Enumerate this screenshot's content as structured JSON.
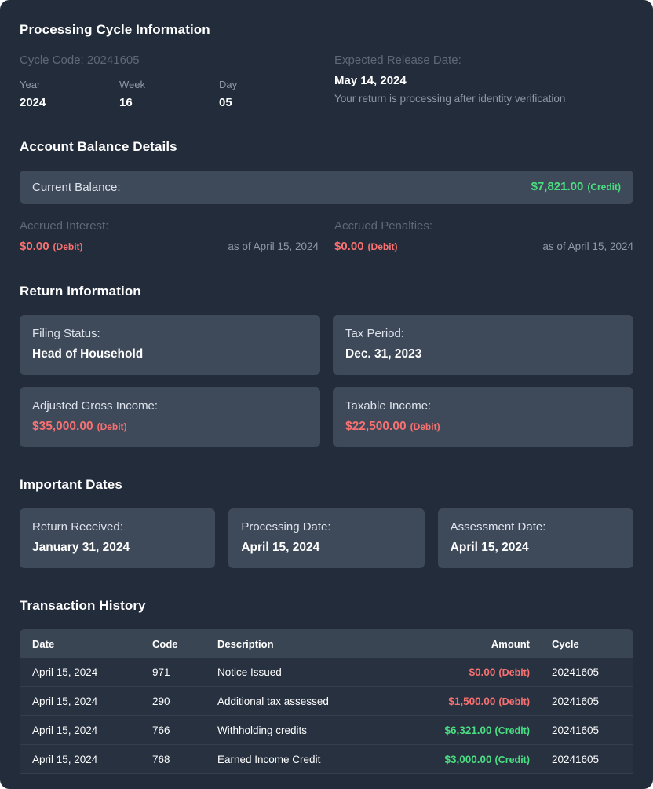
{
  "colors": {
    "credit": "#4ade80",
    "debit": "#f87171"
  },
  "processing_cycle": {
    "title": "Processing Cycle Information",
    "cycle_code": "Cycle Code: 20241605",
    "fields": [
      {
        "label": "Year",
        "value": "2024"
      },
      {
        "label": "Week",
        "value": "16"
      },
      {
        "label": "Day",
        "value": "05"
      }
    ],
    "release": {
      "label": "Expected Release Date:",
      "date": "May 14, 2024",
      "note": "Your return is processing after identity verification"
    }
  },
  "account_balance": {
    "title": "Account Balance Details",
    "current_balance": {
      "label": "Current Balance:",
      "amount": "$7,821.00",
      "suffix": "(Credit)"
    },
    "accrued": [
      {
        "label": "Accrued Interest:",
        "amount": "$0.00",
        "suffix": "(Debit)",
        "as_of": "as of April 15, 2024"
      },
      {
        "label": "Accrued Penalties:",
        "amount": "$0.00",
        "suffix": "(Debit)",
        "as_of": "as of April 15, 2024"
      }
    ]
  },
  "return_information": {
    "title": "Return Information",
    "cards": [
      {
        "label": "Filing Status:",
        "value": "Head of Household"
      },
      {
        "label": "Tax Period:",
        "value": "Dec. 31, 2023"
      },
      {
        "label": "Adjusted Gross Income:",
        "value": "$35,000.00",
        "suffix": "(Debit)"
      },
      {
        "label": "Taxable Income:",
        "value": "$22,500.00",
        "suffix": "(Debit)"
      }
    ]
  },
  "important_dates": {
    "title": "Important Dates",
    "cards": [
      {
        "label": "Return Received:",
        "value": "January 31, 2024"
      },
      {
        "label": "Processing Date:",
        "value": "April 15, 2024"
      },
      {
        "label": "Assessment Date:",
        "value": "April 15, 2024"
      }
    ]
  },
  "transactions": {
    "title": "Transaction History",
    "headers": [
      "Date",
      "Code",
      "Description",
      "Amount",
      "Cycle"
    ],
    "rows": [
      {
        "date": "April 15, 2024",
        "code": "971",
        "description": "Notice Issued",
        "amount": "$0.00",
        "suffix": "(Debit)",
        "cycle": "20241605"
      },
      {
        "date": "April 15, 2024",
        "code": "290",
        "description": "Additional tax assessed",
        "amount": "$1,500.00",
        "suffix": "(Debit)",
        "cycle": "20241605"
      },
      {
        "date": "April 15, 2024",
        "code": "766",
        "description": "Withholding credits",
        "amount": "$6,321.00",
        "suffix": "(Credit)",
        "cycle": "20241605"
      },
      {
        "date": "April 15, 2024",
        "code": "768",
        "description": "Earned Income Credit",
        "amount": "$3,000.00",
        "suffix": "(Credit)",
        "cycle": "20241605"
      }
    ]
  }
}
